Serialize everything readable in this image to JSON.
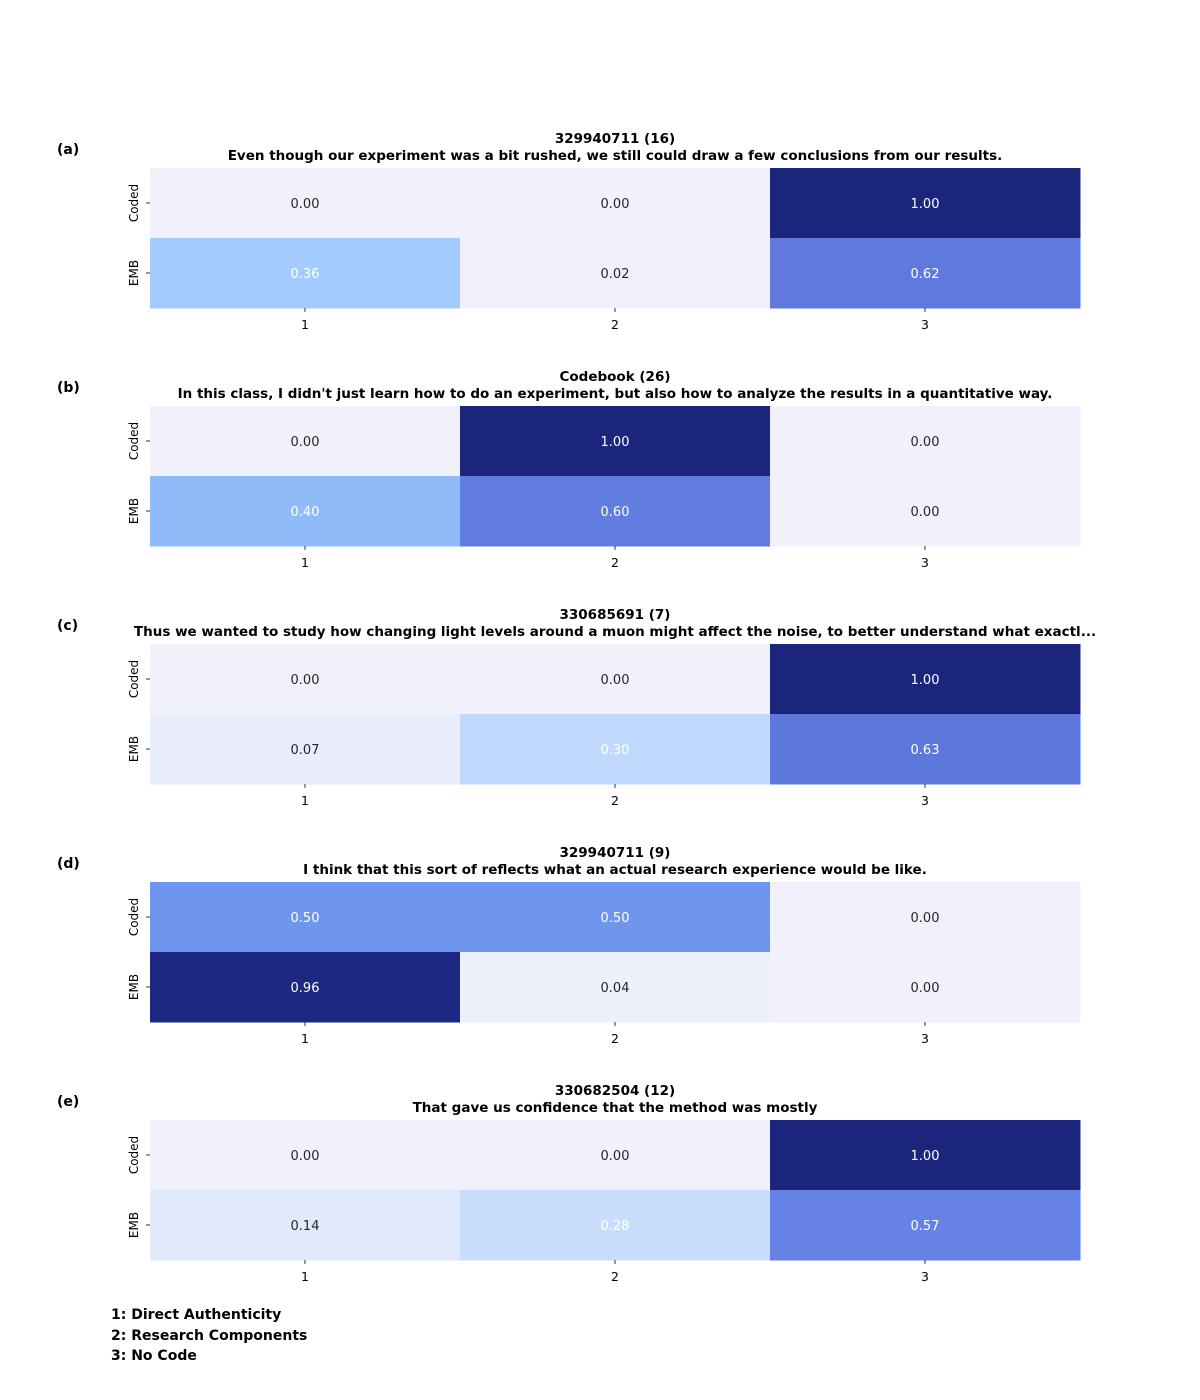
{
  "chart_data": [
    {
      "type": "heatmap",
      "panel_label": "(a)",
      "title": "329940711 (16)",
      "subtitle": "Even though our experiment was a bit rushed, we still could draw a few conclusions from our results.",
      "rows": [
        "Coded",
        "EMB"
      ],
      "columns": [
        "1",
        "2",
        "3"
      ],
      "values": [
        [
          0.0,
          0.0,
          1.0
        ],
        [
          0.36,
          0.02,
          0.62
        ]
      ],
      "value_labels": [
        [
          "0.00",
          "0.00",
          "1.00"
        ],
        [
          "0.36",
          "0.02",
          "0.62"
        ]
      ],
      "color_range": [
        0,
        1
      ]
    },
    {
      "type": "heatmap",
      "panel_label": "(b)",
      "title": "Codebook (26)",
      "subtitle": "In this class, I didn't just learn how to do an experiment, but also how to analyze the results in a quantitative way.",
      "rows": [
        "Coded",
        "EMB"
      ],
      "columns": [
        "1",
        "2",
        "3"
      ],
      "values": [
        [
          0.0,
          1.0,
          0.0
        ],
        [
          0.4,
          0.6,
          0.0
        ]
      ],
      "value_labels": [
        [
          "0.00",
          "1.00",
          "0.00"
        ],
        [
          "0.40",
          "0.60",
          "0.00"
        ]
      ],
      "color_range": [
        0,
        1
      ]
    },
    {
      "type": "heatmap",
      "panel_label": "(c)",
      "title": "330685691 (7)",
      "subtitle": "Thus we wanted to study how changing light levels around a muon might affect the noise, to better understand what exactl...",
      "rows": [
        "Coded",
        "EMB"
      ],
      "columns": [
        "1",
        "2",
        "3"
      ],
      "values": [
        [
          0.0,
          0.0,
          1.0
        ],
        [
          0.07,
          0.3,
          0.63
        ]
      ],
      "value_labels": [
        [
          "0.00",
          "0.00",
          "1.00"
        ],
        [
          "0.07",
          "0.30",
          "0.63"
        ]
      ],
      "color_range": [
        0,
        1
      ]
    },
    {
      "type": "heatmap",
      "panel_label": "(d)",
      "title": "329940711 (9)",
      "subtitle": "I think that this sort of reflects what an actual research experience would be like.",
      "rows": [
        "Coded",
        "EMB"
      ],
      "columns": [
        "1",
        "2",
        "3"
      ],
      "values": [
        [
          0.5,
          0.5,
          0.0
        ],
        [
          0.96,
          0.04,
          0.0
        ]
      ],
      "value_labels": [
        [
          "0.50",
          "0.50",
          "0.00"
        ],
        [
          "0.96",
          "0.04",
          "0.00"
        ]
      ],
      "color_range": [
        0,
        1
      ]
    },
    {
      "type": "heatmap",
      "panel_label": "(e)",
      "title": "330682504 (12)",
      "subtitle": "That gave us confidence that the method was mostly",
      "rows": [
        "Coded",
        "EMB"
      ],
      "columns": [
        "1",
        "2",
        "3"
      ],
      "values": [
        [
          0.0,
          0.0,
          1.0
        ],
        [
          0.14,
          0.28,
          0.57
        ]
      ],
      "value_labels": [
        [
          "0.00",
          "0.00",
          "1.00"
        ],
        [
          "0.14",
          "0.28",
          "0.57"
        ]
      ],
      "color_range": [
        0,
        1
      ]
    }
  ],
  "legend": {
    "items": [
      "1: Direct Authenticity",
      "2: Research Components",
      "3: No Code"
    ]
  },
  "colors": {
    "scale": [
      "#f1f1fb",
      "#e7ecfc",
      "#dbe6fd",
      "#cde0fd",
      "#a1cafd",
      "#75a4f4",
      "#6887e8",
      "#5d76db",
      "#5168d2",
      "#4b62ca",
      "#1f2b8a",
      "#1b257c"
    ],
    "text_dark": "#262626",
    "text_light": "#ffffff"
  }
}
